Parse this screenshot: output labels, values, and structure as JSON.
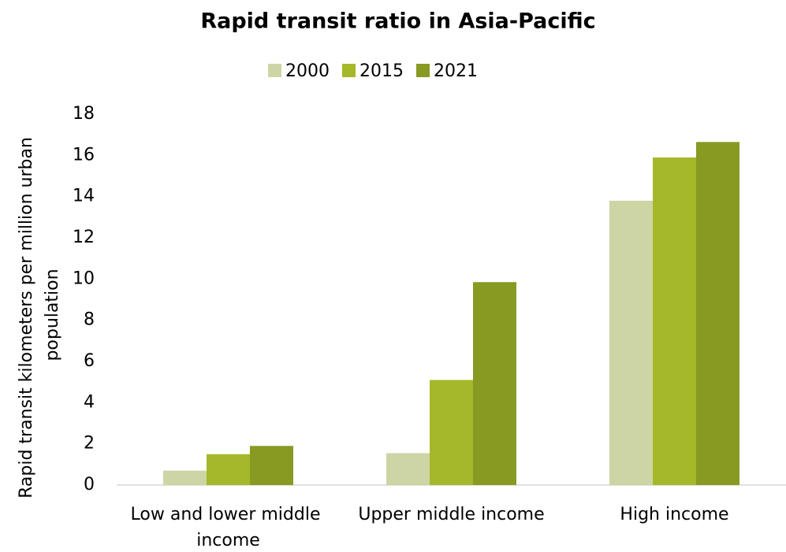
{
  "chart_data": {
    "type": "bar",
    "title": "Rapid transit ratio in Asia-Pacific",
    "y_label": "Rapid transit kilometers per million urban population",
    "categories": [
      "Low and lower middle income",
      "Upper middle income",
      "High income"
    ],
    "series": [
      {
        "name": "2000",
        "color": "#cdd5a5",
        "values": [
          0.7,
          1.55,
          13.8
        ]
      },
      {
        "name": "2015",
        "color": "#a5b829",
        "values": [
          1.5,
          5.1,
          15.9
        ]
      },
      {
        "name": "2021",
        "color": "#889a22",
        "values": [
          1.9,
          9.85,
          16.65
        ]
      }
    ],
    "ylim": [
      0,
      18
    ],
    "yticks": [
      0,
      2,
      4,
      6,
      8,
      10,
      12,
      14,
      16,
      18
    ],
    "legend": "top"
  }
}
